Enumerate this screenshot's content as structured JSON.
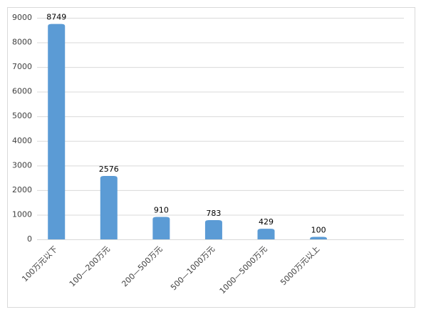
{
  "chart_data": {
    "type": "bar",
    "categories": [
      "100万元以下",
      "100—200万元",
      "200—500万元",
      "500—1000万元",
      "1000—5000万元",
      "5000万元以上",
      null
    ],
    "values": [
      8749,
      2576,
      910,
      783,
      429,
      100,
      null
    ],
    "color": "#5b9bd5",
    "ylim": [
      0,
      9000
    ],
    "yticks": [
      0,
      1000,
      2000,
      3000,
      4000,
      5000,
      6000,
      7000,
      8000,
      9000
    ],
    "grid": true
  }
}
